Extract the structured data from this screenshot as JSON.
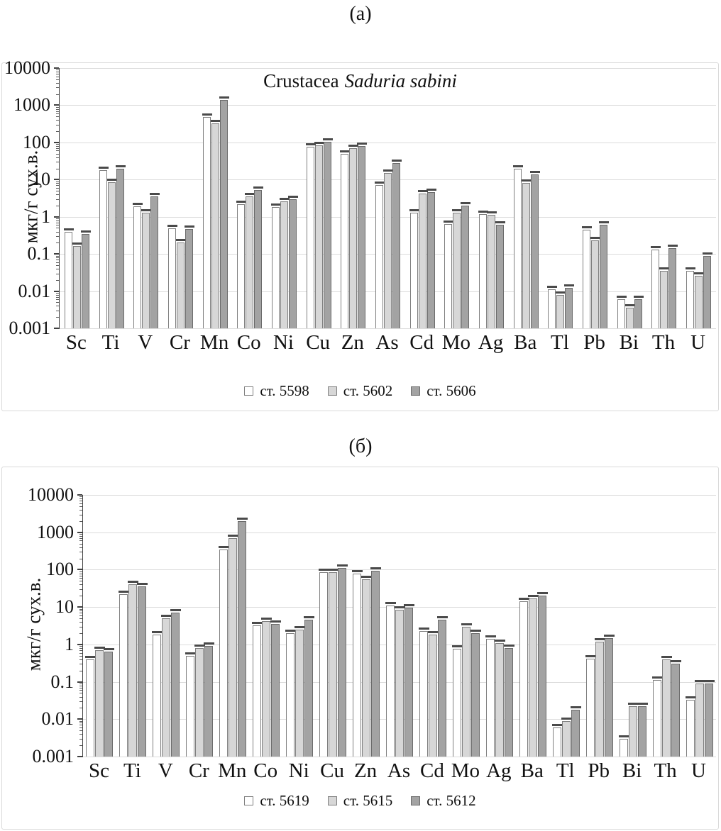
{
  "units_note": "мкг/г сух.в.",
  "chart_data": [
    {
      "id": "chart-a",
      "type": "bar",
      "panel_label": "(а)",
      "title": {
        "regular": "Crustacea",
        "italic": "Saduria sabini"
      },
      "ylabel": "мкг/г сух.в.",
      "yscale": "log",
      "ylim": [
        0.001,
        10000
      ],
      "grid": true,
      "error_bars": true,
      "legend_position": "bottom",
      "tick_labels": [
        "10000",
        "1000",
        "100",
        "10",
        "1",
        "0.1",
        "0.01",
        "0.001"
      ],
      "tick_values": [
        10000,
        1000,
        100,
        10,
        1,
        0.1,
        0.01,
        0.001
      ],
      "categories": [
        "Sc",
        "Ti",
        "V",
        "Cr",
        "Mn",
        "Co",
        "Ni",
        "Cu",
        "Zn",
        "As",
        "Cd",
        "Mo",
        "Ag",
        "Ba",
        "Tl",
        "Pb",
        "Bi",
        "Th",
        "U"
      ],
      "series": [
        {
          "name": "ст. 5598",
          "fill": "#ffffff",
          "border": "#7f7f7f",
          "values": [
            0.4,
            18,
            1.9,
            0.48,
            480,
            2.2,
            1.8,
            78,
            50,
            7,
            1.3,
            0.65,
            1.2,
            20,
            0.011,
            0.45,
            0.006,
            0.13,
            0.035
          ]
        },
        {
          "name": "ст. 5602",
          "fill": "#d7d7d7",
          "border": "#7f7f7f",
          "values": [
            0.16,
            8.5,
            1.3,
            0.2,
            330,
            3.5,
            2.6,
            85,
            70,
            15,
            4.3,
            1.3,
            1.15,
            8,
            0.008,
            0.23,
            0.0035,
            0.035,
            0.026
          ]
        },
        {
          "name": "ст. 5606",
          "fill": "#a3a3a3",
          "border": "#6b6b6b",
          "values": [
            0.35,
            20,
            3.5,
            0.47,
            1400,
            5.2,
            2.9,
            105,
            80,
            28,
            4.6,
            2.0,
            0.6,
            14,
            0.012,
            0.6,
            0.006,
            0.14,
            0.09
          ]
        }
      ]
    },
    {
      "id": "chart-b",
      "type": "bar",
      "panel_label": "(б)",
      "title": {
        "regular": "",
        "italic": ""
      },
      "ylabel": "мкг/г сух.в.",
      "yscale": "log",
      "ylim": [
        0.001,
        10000
      ],
      "grid": true,
      "error_bars": true,
      "legend_position": "bottom",
      "tick_labels": [
        "10000",
        "1000",
        "100",
        "10",
        "1",
        "0.1",
        "0.01",
        "0.001"
      ],
      "tick_values": [
        10000,
        1000,
        100,
        10,
        1,
        0.1,
        0.01,
        0.001
      ],
      "categories": [
        "Sc",
        "Ti",
        "V",
        "Cr",
        "Mn",
        "Co",
        "Ni",
        "Cu",
        "Zn",
        "As",
        "Cd",
        "Mo",
        "Ag",
        "Ba",
        "Tl",
        "Pb",
        "Bi",
        "Th",
        "U"
      ],
      "series": [
        {
          "name": "ст. 5619",
          "fill": "#ffffff",
          "border": "#7f7f7f",
          "values": [
            0.4,
            22,
            1.8,
            0.5,
            350,
            3.2,
            2.0,
            85,
            80,
            11,
            2.3,
            0.75,
            1.4,
            14,
            0.006,
            0.42,
            0.003,
            0.11,
            0.033
          ]
        },
        {
          "name": "ст. 5615",
          "fill": "#d7d7d7",
          "border": "#7f7f7f",
          "values": [
            0.7,
            40,
            5,
            0.8,
            700,
            4.2,
            2.5,
            85,
            55,
            8.5,
            1.8,
            3.0,
            1.1,
            17,
            0.009,
            1.2,
            0.022,
            0.4,
            0.09
          ]
        },
        {
          "name": "ст. 5612",
          "fill": "#a3a3a3",
          "border": "#6b6b6b",
          "values": [
            0.65,
            35,
            7,
            0.9,
            2000,
            3.5,
            4.5,
            110,
            95,
            9.5,
            4.5,
            2.0,
            0.8,
            20,
            0.018,
            1.5,
            0.022,
            0.3,
            0.09
          ]
        }
      ]
    }
  ]
}
